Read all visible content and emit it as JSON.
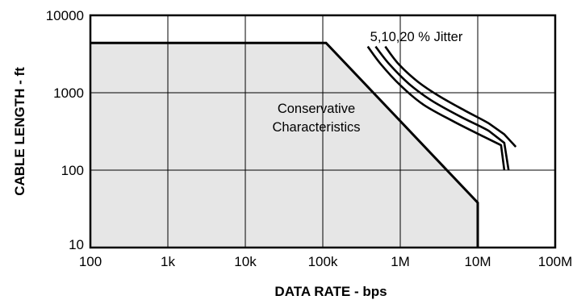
{
  "chart_data": {
    "type": "line",
    "title": "",
    "xlabel": "DATA RATE - bps",
    "ylabel": "CABLE LENGTH - ft",
    "x_scale": "log",
    "y_scale": "log",
    "xlim": [
      100,
      100000000
    ],
    "ylim": [
      10,
      10000
    ],
    "grid": true,
    "x_ticks": [
      {
        "value": 100,
        "label": "100"
      },
      {
        "value": 1000,
        "label": "1k"
      },
      {
        "value": 10000,
        "label": "10k"
      },
      {
        "value": 100000,
        "label": "100k"
      },
      {
        "value": 1000000,
        "label": "1M"
      },
      {
        "value": 10000000,
        "label": "10M"
      },
      {
        "value": 100000000,
        "label": "100M"
      }
    ],
    "y_ticks": [
      {
        "value": 10,
        "label": "10"
      },
      {
        "value": 100,
        "label": "100"
      },
      {
        "value": 1000,
        "label": "1000"
      },
      {
        "value": 10000,
        "label": "10000"
      }
    ],
    "region": {
      "label_lines": [
        "Conservative",
        "Characteristics"
      ],
      "fill": "#e6e6e6",
      "points": [
        [
          100,
          4400
        ],
        [
          110000,
          4400
        ],
        [
          10000000,
          38
        ],
        [
          10000000,
          10
        ],
        [
          100,
          10
        ]
      ]
    },
    "jitter_label": "5,10,20 % Jitter",
    "series": [
      {
        "points": [
          [
            380000,
            3950
          ],
          [
            560000,
            2350
          ],
          [
            1000000,
            1250
          ],
          [
            2000000,
            700
          ],
          [
            5000000,
            420
          ],
          [
            12000000,
            270
          ],
          [
            20000000,
            210
          ],
          [
            22000000,
            100
          ]
        ]
      },
      {
        "points": [
          [
            480000,
            3950
          ],
          [
            720000,
            2350
          ],
          [
            1300000,
            1300
          ],
          [
            2500000,
            800
          ],
          [
            6000000,
            490
          ],
          [
            14000000,
            320
          ],
          [
            22000000,
            225
          ],
          [
            25000000,
            100
          ]
        ]
      },
      {
        "points": [
          [
            640000,
            3950
          ],
          [
            950000,
            2350
          ],
          [
            1700000,
            1380
          ],
          [
            3200000,
            900
          ],
          [
            7000000,
            580
          ],
          [
            14000000,
            400
          ],
          [
            22000000,
            290
          ],
          [
            31000000,
            200
          ]
        ]
      }
    ]
  }
}
